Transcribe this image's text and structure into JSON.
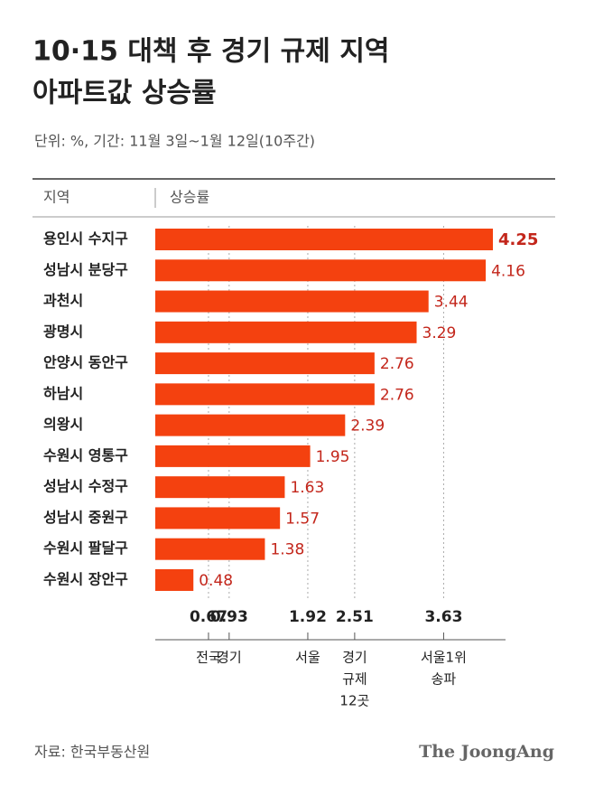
{
  "chart_data": {
    "type": "bar",
    "title": [
      "10·15 대책 후 경기 규제 지역",
      "아파트값 상승률"
    ],
    "subtitle": "단위: %, 기간: 11월 3일~1월 12일(10주간)",
    "column_headers": [
      "지역",
      "상승률"
    ],
    "categories": [
      "용인시 수지구",
      "성남시 분당구",
      "과천시",
      "광명시",
      "안양시 동안구",
      "하남시",
      "의왕시",
      "수원시 영통구",
      "성남시 수정구",
      "성남시 중원구",
      "수원시 팔달구",
      "수원시 장안구"
    ],
    "values": [
      4.25,
      4.16,
      3.44,
      3.29,
      2.76,
      2.76,
      2.39,
      1.95,
      1.63,
      1.57,
      1.38,
      0.48
    ],
    "color": "#f4410f",
    "label_color": "#c3261b",
    "xlim": [
      0,
      5
    ],
    "references": [
      {
        "name": [
          "전국"
        ],
        "value": 0.67
      },
      {
        "name": [
          "경기"
        ],
        "value": 0.93
      },
      {
        "name": [
          "서울"
        ],
        "value": 1.92
      },
      {
        "name": [
          "경기",
          "규제",
          "12곳"
        ],
        "value": 2.51
      },
      {
        "name": [
          "서울1위",
          "송파"
        ],
        "value": 3.63
      }
    ],
    "source": "자료: 한국부동산원",
    "logo": "The JoongAng"
  }
}
